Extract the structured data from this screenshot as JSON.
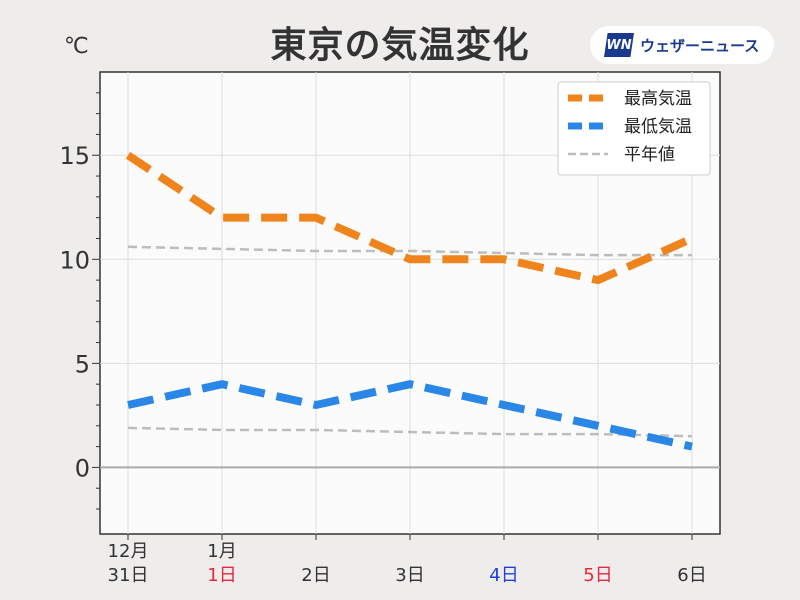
{
  "header": {
    "title": "東京の気温変化",
    "unit": "℃",
    "logo_mark": "WN",
    "logo_text": "ウェザーニュース"
  },
  "chart_data": {
    "type": "line",
    "title": "東京の気温変化",
    "ylabel": "℃",
    "ylim": [
      -3.2,
      19
    ],
    "yticks": [
      0,
      5,
      10,
      15
    ],
    "grid": true,
    "legend_position": "top-right",
    "categories": [
      {
        "month": "12月",
        "day": "31日",
        "color": "#333333"
      },
      {
        "month": "1月",
        "day": "1日",
        "color": "#e8283c"
      },
      {
        "month": "",
        "day": "2日",
        "color": "#333333"
      },
      {
        "month": "",
        "day": "3日",
        "color": "#333333"
      },
      {
        "month": "",
        "day": "4日",
        "color": "#1f3fe0"
      },
      {
        "month": "",
        "day": "5日",
        "color": "#e8283c"
      },
      {
        "month": "",
        "day": "6日",
        "color": "#333333"
      }
    ],
    "series": [
      {
        "name": "最高気温",
        "color": "#f0841c",
        "style": "thick-dashed",
        "values": [
          15,
          12,
          12,
          10,
          10,
          9,
          11
        ]
      },
      {
        "name": "最低気温",
        "color": "#2a87e8",
        "style": "thick-dashed",
        "values": [
          3,
          4,
          3,
          4,
          3,
          2,
          1
        ]
      },
      {
        "name": "平年値",
        "color": "#bdbdbd",
        "style": "thin-dashed",
        "values": [
          10.6,
          10.5,
          10.4,
          10.4,
          10.3,
          10.2,
          10.2
        ]
      },
      {
        "name": "",
        "color": "#bdbdbd",
        "style": "thin-dashed",
        "values": [
          1.9,
          1.8,
          1.8,
          1.7,
          1.6,
          1.6,
          1.5
        ]
      }
    ]
  }
}
